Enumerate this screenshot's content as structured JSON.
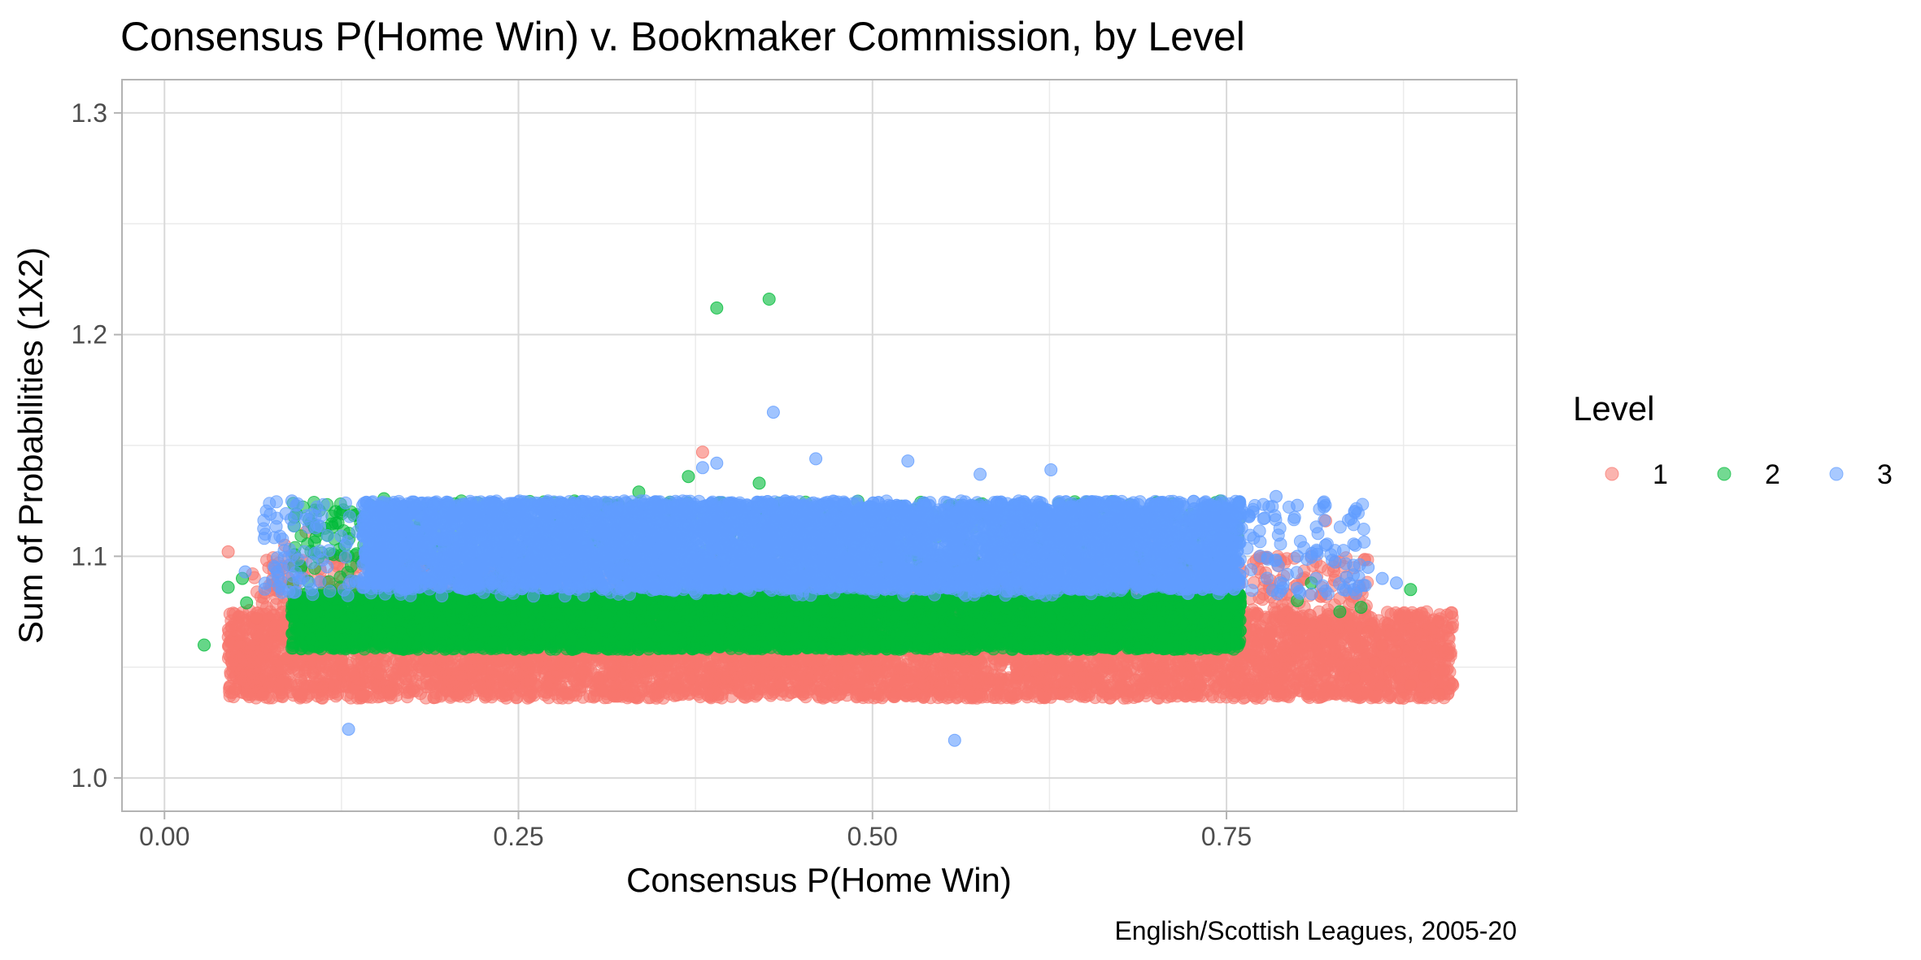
{
  "chart_data": {
    "type": "scatter",
    "title": "Consensus P(Home Win) v. Bookmaker Commission, by Level",
    "xlabel": "Consensus P(Home Win)",
    "ylabel": "Sum of Probabilities (1X2)",
    "caption": "English/Scottish Leagues, 2005-20",
    "xlim": [
      -0.03,
      0.955
    ],
    "ylim": [
      0.985,
      1.315
    ],
    "x_ticks": [
      0.0,
      0.25,
      0.5,
      0.75
    ],
    "x_tick_labels": [
      "0.00",
      "0.25",
      "0.50",
      "0.75"
    ],
    "y_ticks": [
      1.0,
      1.1,
      1.2,
      1.3
    ],
    "y_tick_labels": [
      "1.0",
      "1.1",
      "1.2",
      "1.3"
    ],
    "grid": true,
    "legend": {
      "title": "Level",
      "position": "right"
    },
    "series": [
      {
        "name": "1",
        "color": "#F8766D",
        "bands": [
          {
            "x": [
              0.045,
              0.91
            ],
            "y": [
              1.036,
              1.075
            ]
          },
          {
            "x": [
              0.06,
              0.85
            ],
            "y": [
              1.075,
              1.1
            ],
            "density": "sparse"
          }
        ],
        "outliers": [
          [
            0.38,
            1.147
          ],
          [
            0.045,
            1.102
          ],
          [
            0.875,
            1.036
          ],
          [
            0.9,
            1.038
          ],
          [
            0.89,
            1.046
          ],
          [
            0.88,
            1.042
          ],
          [
            0.865,
            1.048
          ],
          [
            0.86,
            1.06
          ],
          [
            0.85,
            1.066
          ],
          [
            0.83,
            1.081
          ],
          [
            0.82,
            1.116
          ],
          [
            0.81,
            1.1
          ],
          [
            0.7,
            1.108
          ],
          [
            0.1,
            1.111
          ],
          [
            0.085,
            1.105
          ],
          [
            0.065,
            1.072
          ],
          [
            0.05,
            1.04
          ],
          [
            0.84,
            1.045
          ],
          [
            0.87,
            1.057
          ],
          [
            0.855,
            1.052
          ]
        ]
      },
      {
        "name": "2",
        "color": "#00BA38",
        "bands": [
          {
            "x": [
              0.09,
              0.76
            ],
            "y": [
              1.058,
              1.083
            ]
          },
          {
            "x": [
              0.09,
              0.76
            ],
            "y": [
              1.083,
              1.125
            ],
            "density": "sparse"
          }
        ],
        "outliers": [
          [
            0.427,
            1.216
          ],
          [
            0.39,
            1.212
          ],
          [
            0.37,
            1.136
          ],
          [
            0.42,
            1.133
          ],
          [
            0.335,
            1.129
          ],
          [
            0.028,
            1.06
          ],
          [
            0.045,
            1.086
          ],
          [
            0.058,
            1.079
          ],
          [
            0.88,
            1.085
          ],
          [
            0.845,
            1.077
          ],
          [
            0.83,
            1.075
          ],
          [
            0.81,
            1.088
          ],
          [
            0.8,
            1.08
          ],
          [
            0.155,
            1.126
          ],
          [
            0.055,
            1.09
          ]
        ]
      },
      {
        "name": "3",
        "color": "#619CFF",
        "bands": [
          {
            "x": [
              0.14,
              0.76
            ],
            "y": [
              1.085,
              1.125
            ]
          },
          {
            "x": [
              0.07,
              0.85
            ],
            "y": [
              1.082,
              1.125
            ],
            "density": "sparse"
          }
        ],
        "outliers": [
          [
            0.43,
            1.165
          ],
          [
            0.46,
            1.144
          ],
          [
            0.525,
            1.143
          ],
          [
            0.38,
            1.14
          ],
          [
            0.39,
            1.142
          ],
          [
            0.626,
            1.139
          ],
          [
            0.576,
            1.137
          ],
          [
            0.13,
            1.022
          ],
          [
            0.558,
            1.017
          ],
          [
            0.057,
            1.093
          ],
          [
            0.09,
            1.125
          ],
          [
            0.093,
            1.123
          ],
          [
            0.785,
            1.127
          ],
          [
            0.8,
            1.123
          ],
          [
            0.82,
            1.105
          ],
          [
            0.85,
            1.095
          ],
          [
            0.86,
            1.09
          ],
          [
            0.87,
            1.088
          ],
          [
            0.84,
            1.085
          ],
          [
            0.8,
            1.1
          ]
        ]
      }
    ]
  }
}
